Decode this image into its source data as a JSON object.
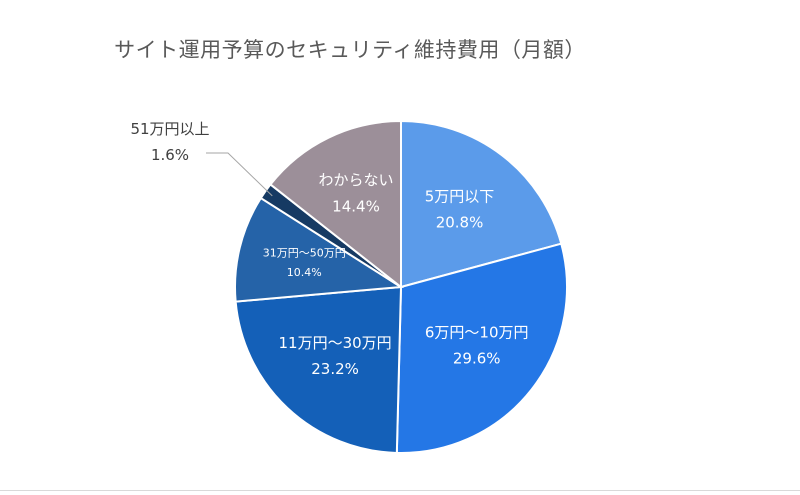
{
  "chart_data": {
    "type": "pie",
    "title": "サイト運用予算のセキュリティ維持費用（月額）",
    "start": "12 o'clock, clockwise",
    "slices": [
      {
        "label": "5万円以下",
        "value": 20.8,
        "value_label": "20.8%",
        "color": "#5b9bea"
      },
      {
        "label": "6万円〜10万円",
        "value": 29.6,
        "value_label": "29.6%",
        "color": "#2477e6"
      },
      {
        "label": "11万円〜30万円",
        "value": 23.2,
        "value_label": "23.2%",
        "color": "#1460b8"
      },
      {
        "label": "31万円〜50万円",
        "value": 10.4,
        "value_label": "10.4%",
        "color": "#2563a8"
      },
      {
        "label": "51万円以上",
        "value": 1.6,
        "value_label": "1.6%",
        "color": "#163a63"
      },
      {
        "label": "わからない",
        "value": 14.4,
        "value_label": "14.4%",
        "color": "#9c8f99"
      }
    ]
  }
}
